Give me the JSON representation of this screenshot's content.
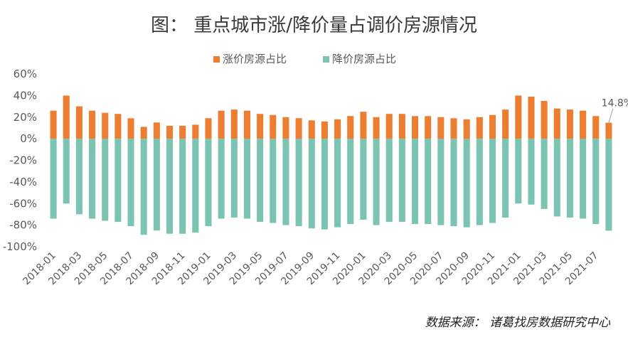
{
  "chart_data": {
    "type": "bar",
    "title": "图：  重点城市涨/降价量占调价房源情况",
    "source": "数据来源：  诸葛找房数据研究中心",
    "ylim": [
      -100,
      60
    ],
    "yticks": [
      "60%",
      "40%",
      "20%",
      "0%",
      "-20%",
      "-40%",
      "-60%",
      "-80%",
      "-100%"
    ],
    "grid": false,
    "legend_position": "top",
    "categories": [
      "2018-01",
      "2018-02",
      "2018-03",
      "2018-04",
      "2018-05",
      "2018-06",
      "2018-07",
      "2018-08",
      "2018-09",
      "2018-10",
      "2018-11",
      "2018-12",
      "2019-01",
      "2019-02",
      "2019-03",
      "2019-04",
      "2019-05",
      "2019-06",
      "2019-07",
      "2019-08",
      "2019-09",
      "2019-10",
      "2019-11",
      "2019-12",
      "2020-01",
      "2020-02",
      "2020-03",
      "2020-04",
      "2020-05",
      "2020-06",
      "2020-07",
      "2020-08",
      "2020-09",
      "2020-10",
      "2020-11",
      "2020-12",
      "2021-01",
      "2021-02",
      "2021-03",
      "2021-04",
      "2021-05",
      "2021-06",
      "2021-07",
      "2021-08"
    ],
    "xtick_labels": [
      "2018-01",
      "2018-03",
      "2018-05",
      "2018-07",
      "2018-09",
      "2018-11",
      "2019-01",
      "2019-03",
      "2019-05",
      "2019-07",
      "2019-09",
      "2019-11",
      "2020-01",
      "2020-03",
      "2020-05",
      "2020-07",
      "2020-09",
      "2020-11",
      "2021-01",
      "2021-03",
      "2021-05",
      "2021-07"
    ],
    "series": [
      {
        "name": "涨价房源占比",
        "color": "#ED7D31",
        "values": [
          26,
          40,
          30,
          26,
          24,
          23,
          19,
          11,
          15,
          12,
          12,
          13,
          19,
          26,
          27,
          26,
          23,
          22,
          20,
          19,
          17,
          16,
          18,
          21,
          25,
          20,
          23,
          23,
          21,
          21,
          20,
          19,
          18,
          20,
          22,
          27,
          40,
          39,
          35,
          28,
          27,
          26,
          21,
          14.8
        ]
      },
      {
        "name": "降价房源占比",
        "color": "#7CC4B2",
        "values": [
          -74,
          -60,
          -70,
          -74,
          -76,
          -77,
          -81,
          -89,
          -85,
          -88,
          -88,
          -87,
          -81,
          -74,
          -73,
          -74,
          -77,
          -78,
          -80,
          -81,
          -83,
          -84,
          -82,
          -79,
          -75,
          -80,
          -77,
          -77,
          -79,
          -79,
          -80,
          -81,
          -82,
          -80,
          -78,
          -73,
          -60,
          -61,
          -65,
          -72,
          -73,
          -74,
          -79,
          -85.2
        ]
      }
    ],
    "annotations": [
      {
        "category": "2021-08",
        "series": "涨价房源占比",
        "text": "14.8%"
      }
    ]
  }
}
